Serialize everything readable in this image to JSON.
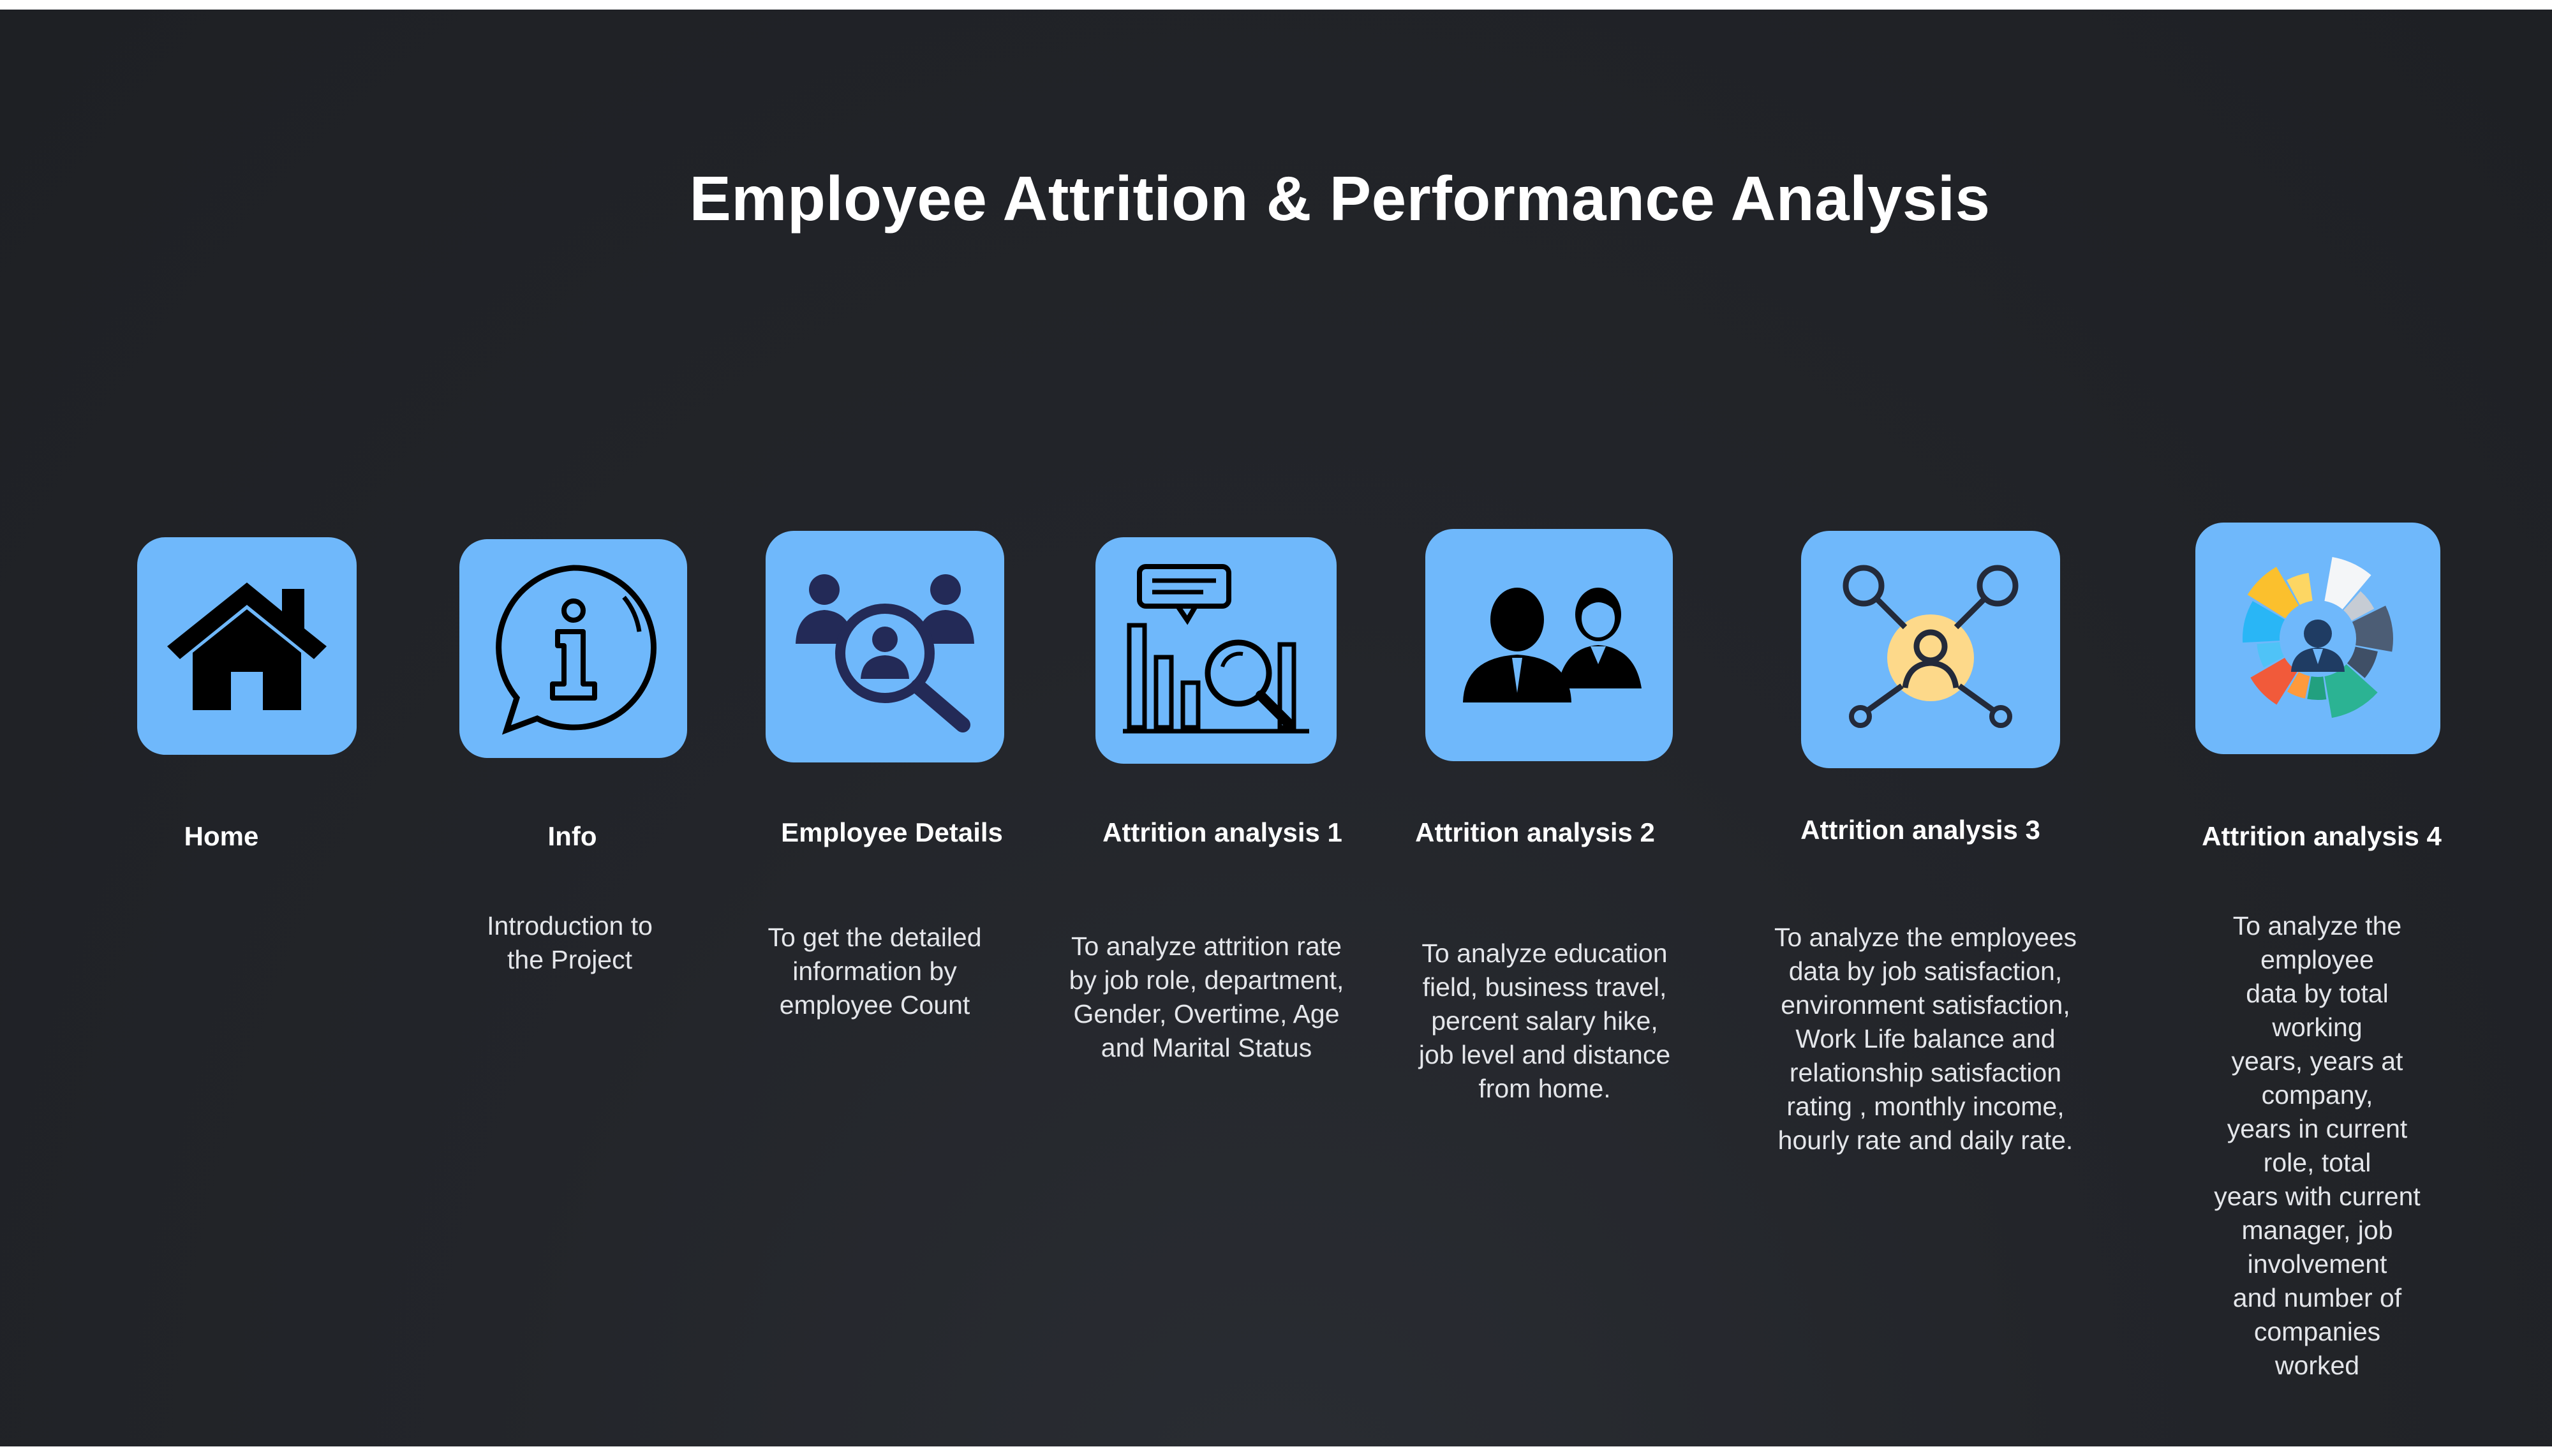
{
  "page": {
    "title": "Employee Attrition & Performance Analysis"
  },
  "colors": {
    "background": "#1f2125",
    "tile": "#6fb8fb",
    "text": "#ffffff"
  },
  "nav": [
    {
      "label": "Home",
      "icon": "home-icon",
      "description": ""
    },
    {
      "label": "Info",
      "icon": "info-icon",
      "description": "Introduction to\nthe Project"
    },
    {
      "label": "Employee Details",
      "icon": "employee-search-icon",
      "description": "To get the detailed\ninformation by\nemployee Count"
    },
    {
      "label": "Attrition analysis 1",
      "icon": "bar-chart-magnifier-icon",
      "description": "To analyze attrition rate\nby job role, department,\nGender, Overtime, Age\nand  Marital Status"
    },
    {
      "label": "Attrition analysis 2",
      "icon": "two-people-icon",
      "description": "To analyze education\nfield, business travel,\npercent salary hike,\njob level and distance\nfrom home."
    },
    {
      "label": "Attrition analysis 3",
      "icon": "network-person-icon",
      "description": "To analyze the employees\ndata by  job satisfaction,\nenvironment satisfaction,\nWork Life balance and\nrelationship satisfaction\nrating , monthly income,\nhourly rate and daily rate."
    },
    {
      "label": "Attrition analysis 4",
      "icon": "person-donut-chart-icon",
      "description": "To analyze the employee\ndata by total working\nyears, years at company,\nyears in current role, total\nyears with current\nmanager, job involvement\nand number of companies\nworked"
    }
  ]
}
